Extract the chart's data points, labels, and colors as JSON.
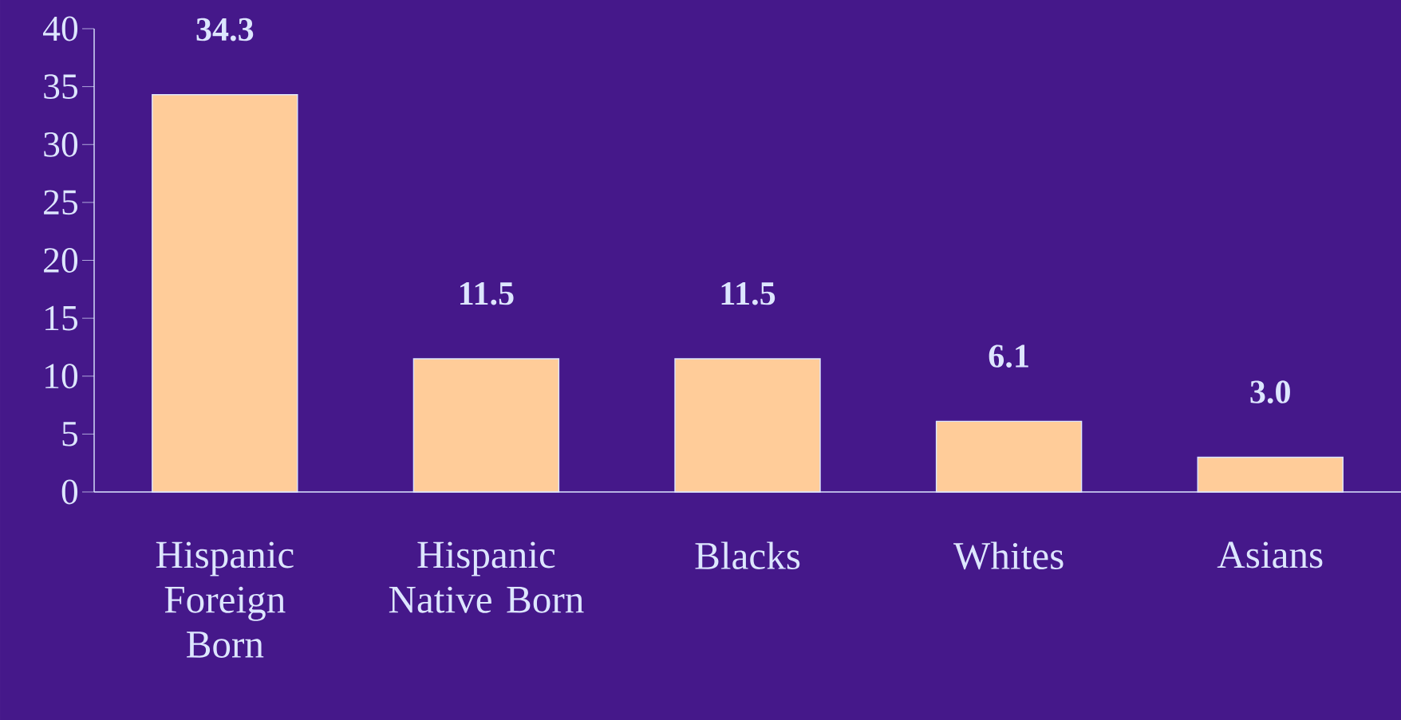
{
  "chart_data": {
    "type": "bar",
    "categories": [
      "Hispanic Foreign Born",
      "Hispanic Native Born",
      "Blacks",
      "Whites",
      "Asians"
    ],
    "values": [
      34.3,
      11.5,
      11.5,
      6.1,
      3.0
    ],
    "value_labels": [
      "34.3",
      "11.5",
      "11.5",
      "6.1",
      "3.0"
    ],
    "color": "#ffcc99",
    "ylim": [
      0,
      40
    ],
    "yticks": [
      0,
      5,
      10,
      15,
      20,
      25,
      30,
      35,
      40
    ],
    "grid": false
  }
}
